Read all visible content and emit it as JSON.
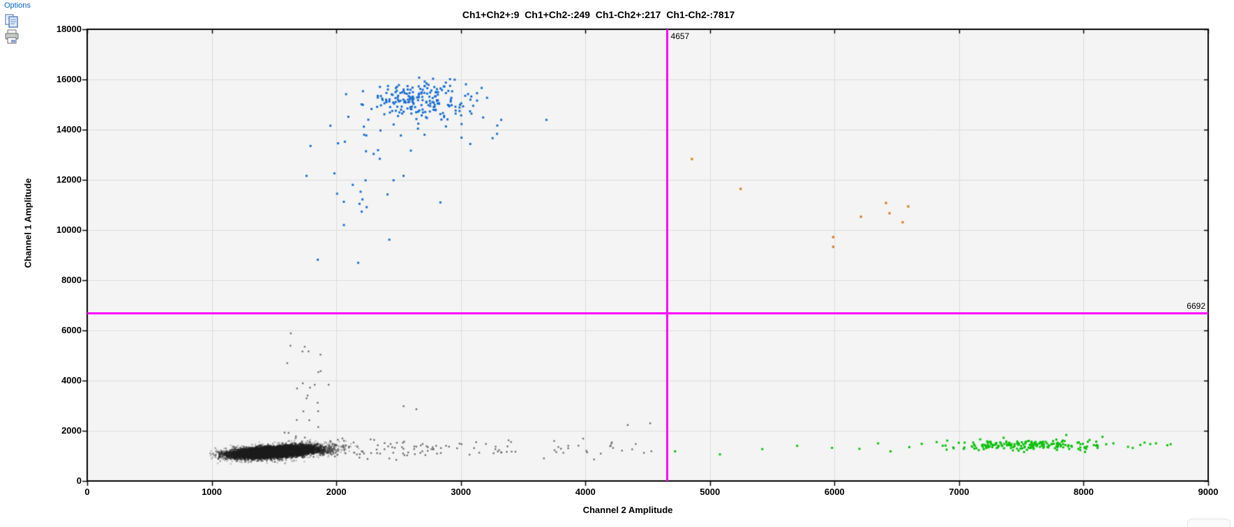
{
  "toolbar": {
    "options_label": "Options",
    "copy_icon": "copy-icon",
    "print_icon": "print-icon"
  },
  "chart_data": {
    "type": "scatter",
    "title": "Ch1+Ch2+:9  Ch1+Ch2-:249  Ch1-Ch2+:217  Ch1-Ch2-:7817",
    "xlabel": "Channel 2 Amplitude",
    "ylabel": "Channel 1 Amplitude",
    "xlim": [
      0,
      9000
    ],
    "ylim": [
      0,
      18000
    ],
    "xticks": [
      0,
      1000,
      2000,
      3000,
      4000,
      5000,
      6000,
      7000,
      8000,
      9000
    ],
    "yticks": [
      0,
      2000,
      4000,
      6000,
      8000,
      10000,
      12000,
      14000,
      16000,
      18000
    ],
    "grid": true,
    "plot_bg": "#f4f4f4",
    "grid_color": "#dcdcdc",
    "border_color": "#000000",
    "quadrant_counts": {
      "ch1pos_ch2pos": 9,
      "ch1pos_ch2neg": 249,
      "ch1neg_ch2pos": 217,
      "ch1neg_ch2neg": 7817
    },
    "thresholds": {
      "x_value": 4657,
      "x_label": "4657",
      "y_value": 6692,
      "y_label": "6692",
      "color": "#ff00ff"
    },
    "colors": {
      "ch1_positive_blue": "#1a6ed2",
      "ch2_positive_green": "#0cc00c",
      "double_positive_orange": "#da7a1e",
      "double_negative_gray": "#3a3a3a"
    },
    "random_seed": 1234,
    "clusters": [
      {
        "name": "negative-halo",
        "kind": "gauss",
        "color": "rgba(95,95,95,0.38)",
        "count": 1450,
        "cx": 1520,
        "cy": 1180,
        "sx": 255,
        "sy": 150,
        "tilt": 0.28,
        "size": 2.2,
        "clip": {
          "xmin": 980,
          "xmax": 2400,
          "ymin": 660,
          "ymax": 2000
        }
      },
      {
        "name": "negative-core",
        "kind": "gauss",
        "color": "rgba(30,30,30,0.55)",
        "count": 6200,
        "cx": 1500,
        "cy": 1150,
        "sx": 160,
        "sy": 100,
        "tilt": 0.28,
        "size": 2.6,
        "clip": {
          "xmin": 1030,
          "xmax": 2150,
          "ymin": 700,
          "ymax": 1750
        }
      },
      {
        "name": "negative-trail",
        "kind": "trail",
        "color": "rgba(90,90,90,0.85)",
        "count": 136,
        "x0": 1950,
        "x1": 4550,
        "pow": 2.2,
        "cy": 1300,
        "sy": 185,
        "size": 2.4,
        "clip": {
          "ymin": 800,
          "ymax": 1900
        }
      },
      {
        "name": "negative-rain",
        "kind": "rain",
        "color": "rgba(90,90,90,0.85)",
        "count": 27,
        "cx": 1730,
        "sx": 170,
        "y0": 1680,
        "y1": 6350,
        "pow": 1.6,
        "size": 2.4,
        "clip": {
          "xmin": 1350,
          "xmax": 2150
        }
      },
      {
        "name": "ch1-positive-core",
        "kind": "gauss",
        "color": "#1a6ed2",
        "count": 170,
        "cx": 2690,
        "cy": 15150,
        "sx": 205,
        "sy": 390,
        "tilt": 0,
        "size": 3,
        "clip": {
          "xmin": 2150,
          "xmax": 3300,
          "ymax": 16150
        }
      },
      {
        "name": "ch1-positive-spread",
        "kind": "gauss",
        "color": "#1a6ed2",
        "count": 50,
        "cx": 2760,
        "cy": 14650,
        "sx": 380,
        "sy": 680,
        "tilt": 0,
        "size": 3,
        "clip": {
          "xmin": 1950,
          "xmax": 3400,
          "ymax": 16100
        }
      },
      {
        "name": "ch1-positive-tail",
        "kind": "rain",
        "color": "#1a6ed2",
        "count": 23,
        "cx": 2120,
        "sx": 200,
        "y0": 7700,
        "y1": 14000,
        "pow": 0.85,
        "size": 3,
        "clip": {
          "xmin": 1750,
          "xmax": 2600
        }
      },
      {
        "name": "ch2-positive-core",
        "kind": "gauss",
        "color": "#0cc00c",
        "count": 150,
        "cx": 7520,
        "cy": 1430,
        "sx": 290,
        "sy": 105,
        "tilt": 0,
        "size": 3,
        "clip": {
          "xmin": 6850,
          "xmax": 8250,
          "ymin": 950
        }
      },
      {
        "name": "ch2-positive-spread",
        "kind": "gauss",
        "color": "#0cc00c",
        "count": 55,
        "cx": 7650,
        "cy": 1480,
        "sx": 560,
        "sy": 150,
        "tilt": 0,
        "size": 3,
        "clip": {
          "xmin": 6550,
          "xmax": 8700,
          "ymin": 900
        }
      }
    ],
    "extra_points": [
      {
        "name": "double-positive-droplets",
        "color": "#da7a1e",
        "size": 3.2,
        "points": [
          [
            4855,
            12830
          ],
          [
            5246,
            11640
          ],
          [
            5989,
            9720
          ],
          [
            5989,
            9330
          ],
          [
            6212,
            10530
          ],
          [
            6413,
            11080
          ],
          [
            6441,
            10670
          ],
          [
            6547,
            10310
          ],
          [
            6592,
            10940
          ]
        ]
      },
      {
        "name": "ch1-positive-outliers",
        "color": "#1a6ed2",
        "size": 3,
        "points": [
          [
            1793,
            13350
          ],
          [
            3324,
            14390
          ],
          [
            3687,
            14390
          ],
          [
            2836,
            11100
          ],
          [
            2540,
            12160
          ],
          [
            2210,
            11220
          ]
        ]
      },
      {
        "name": "ch2-positive-sparse",
        "color": "#0cc00c",
        "size": 3,
        "points": [
          [
            4720,
            1180
          ],
          [
            5080,
            1060
          ],
          [
            5420,
            1270
          ],
          [
            5980,
            1320
          ],
          [
            6200,
            1280
          ],
          [
            6450,
            1180
          ],
          [
            6700,
            1480
          ],
          [
            6820,
            1550
          ],
          [
            6600,
            1350
          ],
          [
            6350,
            1500
          ],
          [
            6900,
            1250
          ],
          [
            5700,
            1400
          ]
        ]
      },
      {
        "name": "negative-outliers",
        "color": "rgba(90,90,90,0.9)",
        "size": 2.4,
        "points": [
          [
            4340,
            2230
          ],
          [
            4520,
            2300
          ],
          [
            2643,
            2860
          ],
          [
            2540,
            2980
          ]
        ]
      }
    ]
  }
}
